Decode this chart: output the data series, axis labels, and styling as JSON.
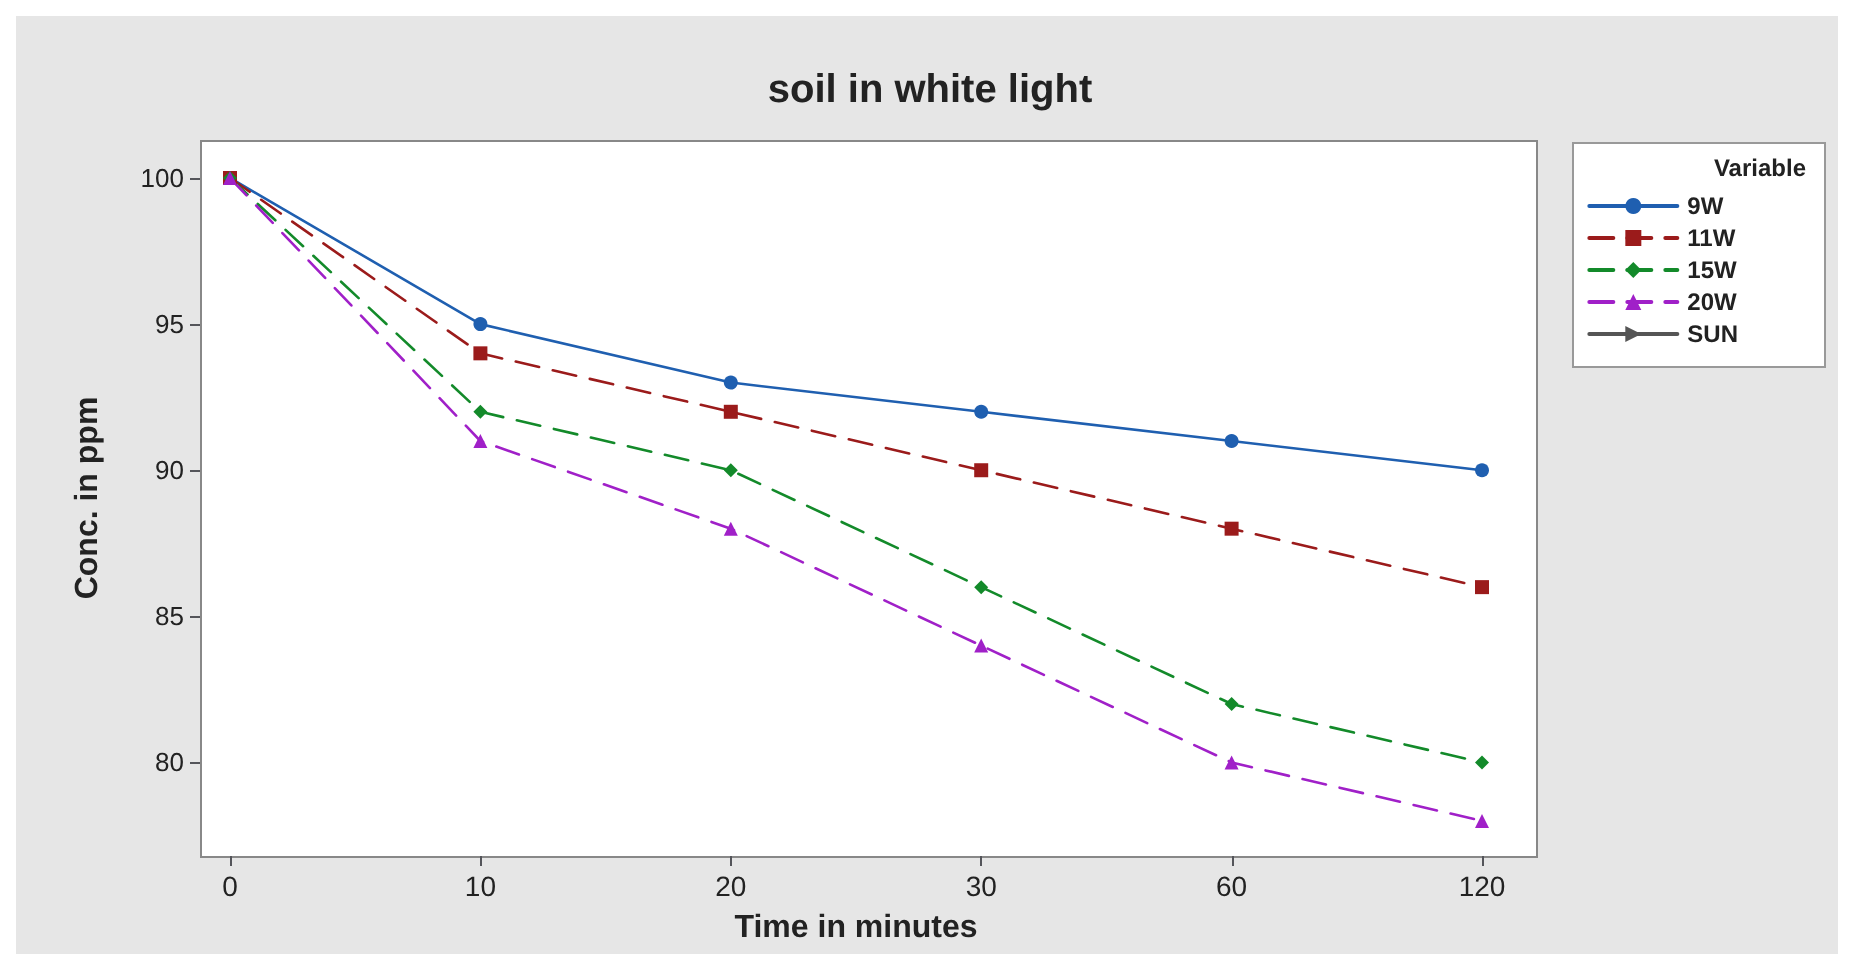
{
  "chart_data": {
    "type": "line",
    "title": "soil in white light",
    "xlabel": "Time in minutes",
    "ylabel": "Conc. in ppm",
    "legend_title": "Variable",
    "legend": "right",
    "grid": false,
    "categories": [
      "0",
      "10",
      "20",
      "30",
      "60",
      "120"
    ],
    "ylim": [
      76.8,
      101.3
    ],
    "yticks": [
      80,
      85,
      90,
      95,
      100
    ],
    "series": [
      {
        "name": "9W",
        "color": "#1f5fb0",
        "values": [
          100,
          95,
          93,
          92,
          91,
          90
        ],
        "marker": "circle",
        "line_style": "solid"
      },
      {
        "name": "11W",
        "color": "#9b1b1b",
        "values": [
          100,
          94,
          92,
          90,
          88,
          86
        ],
        "marker": "square",
        "line_style": "dashed"
      },
      {
        "name": "15W",
        "color": "#138a2a",
        "values": [
          100,
          92,
          90,
          86,
          82,
          80
        ],
        "marker": "diamond",
        "line_style": "dashed"
      },
      {
        "name": "20W",
        "color": "#a020c8",
        "values": [
          100,
          91,
          88,
          84,
          80,
          78
        ],
        "marker": "triangle",
        "line_style": "dashed"
      },
      {
        "name": "SUN",
        "color": "#555555",
        "values": [
          null,
          null,
          null,
          null,
          null,
          null
        ],
        "marker": "triangle-right",
        "line_style": "solid"
      }
    ]
  }
}
